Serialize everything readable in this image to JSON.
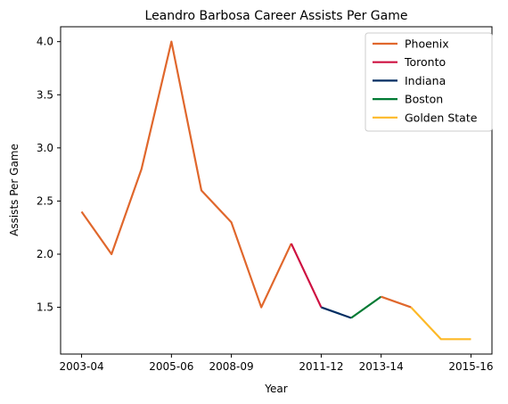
{
  "chart_data": {
    "type": "line",
    "title": "Leandro Barbosa Career Assists Per Game",
    "xlabel": "Year",
    "ylabel": "Assists Per Game",
    "x_ticks": [
      "2003-04",
      "2005-06",
      "2008-09",
      "2011-12",
      "2013-14",
      "2015-16"
    ],
    "x_tick_index": [
      0,
      3,
      5,
      8,
      10,
      13
    ],
    "y_ticks": [
      "1.5",
      "2.0",
      "2.5",
      "3.0",
      "3.5",
      "4.0"
    ],
    "y_tick_values": [
      1.5,
      2.0,
      2.5,
      3.0,
      3.5,
      4.0
    ],
    "ylim": [
      1.06,
      4.14
    ],
    "xlim": [
      -0.7,
      13.7
    ],
    "legend_position": "top-right",
    "grid": false,
    "series": [
      {
        "name": "Phoenix",
        "color": "#e0672c",
        "points": [
          [
            0,
            2.4
          ],
          [
            1,
            2.0
          ],
          [
            2,
            2.8
          ],
          [
            3,
            4.0
          ],
          [
            4,
            2.6
          ],
          [
            5,
            2.3
          ],
          [
            6,
            1.5
          ],
          [
            7,
            2.1
          ]
        ]
      },
      {
        "name": "Toronto",
        "color": "#ce1141",
        "points": [
          [
            7,
            2.1
          ],
          [
            8,
            1.5
          ]
        ]
      },
      {
        "name": "Indiana",
        "color": "#002d62",
        "points": [
          [
            8,
            1.5
          ],
          [
            9,
            1.4
          ]
        ]
      },
      {
        "name": "Boston",
        "color": "#007a33",
        "points": [
          [
            9,
            1.4
          ],
          [
            10,
            1.6
          ]
        ]
      },
      {
        "name": "Phoenix",
        "color": "#e0672c",
        "legend": false,
        "points": [
          [
            10,
            1.6
          ],
          [
            11,
            1.5
          ]
        ]
      },
      {
        "name": "Golden State",
        "color": "#fdb927",
        "points": [
          [
            11,
            1.5
          ],
          [
            12,
            1.2
          ],
          [
            13,
            1.2
          ]
        ]
      }
    ]
  }
}
